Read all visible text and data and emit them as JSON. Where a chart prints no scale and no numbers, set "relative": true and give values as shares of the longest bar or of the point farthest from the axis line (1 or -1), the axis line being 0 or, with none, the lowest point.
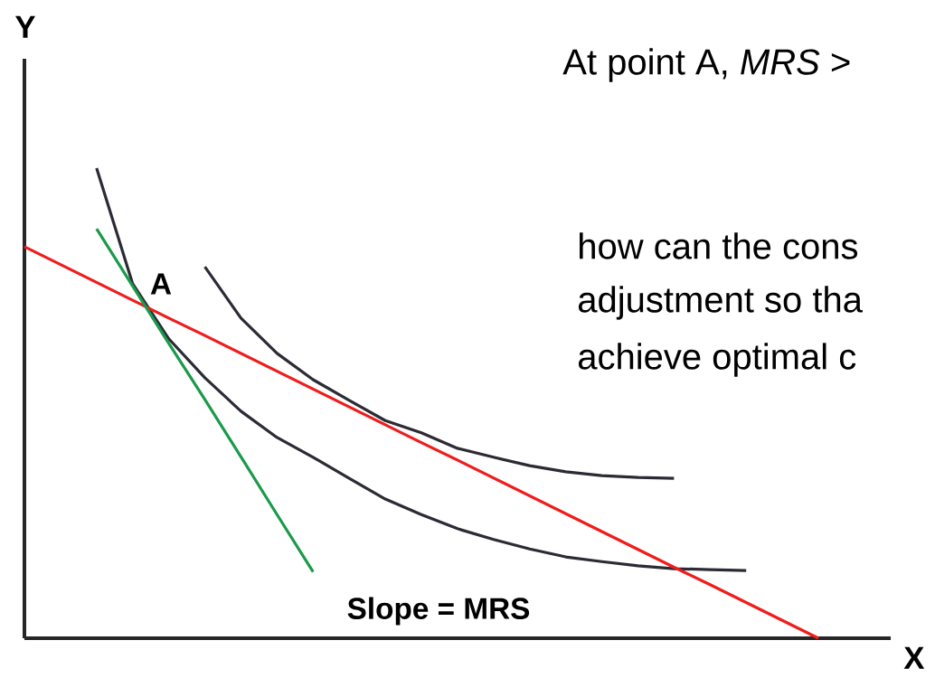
{
  "chart_data": {
    "type": "line",
    "relative": true,
    "xlabel": "X",
    "ylabel": "Y",
    "categories": [
      null,
      null,
      null,
      null,
      null,
      null,
      null,
      null,
      null,
      null,
      null,
      null,
      null,
      null,
      null,
      null,
      null,
      null,
      null,
      null,
      null,
      null,
      null
    ],
    "series": [
      {
        "color": "#2b2b35",
        "values": [
          null,
          null,
          1.0,
          0.754,
          0.637,
          0.554,
          0.483,
          0.427,
          0.385,
          0.34,
          0.296,
          0.263,
          0.233,
          0.21,
          0.19,
          0.173,
          0.163,
          0.154,
          0.148,
          0.146,
          0.144,
          null,
          null
        ]
      },
      {
        "color": "#2b2b35",
        "values": [
          null,
          null,
          null,
          null,
          null,
          0.79,
          0.681,
          0.606,
          0.55,
          0.506,
          0.463,
          0.437,
          0.404,
          0.385,
          0.367,
          0.354,
          0.346,
          0.342,
          0.34,
          null,
          null,
          null,
          null
        ]
      },
      {
        "color": "#f01c1c",
        "values": [
          0.833,
          0.795,
          0.757,
          0.719,
          0.681,
          0.644,
          0.606,
          0.568,
          0.53,
          0.492,
          0.454,
          0.416,
          0.379,
          0.341,
          0.303,
          0.265,
          0.227,
          0.189,
          0.151,
          0.114,
          0.076,
          0.038,
          0
        ]
      },
      {
        "color": "#1a9a4a",
        "values": [
          null,
          null,
          0.871,
          0.749,
          0.627,
          0.508,
          0.386,
          0.263,
          0.141,
          null,
          null,
          null,
          null,
          null,
          null,
          null,
          null,
          null,
          null,
          null,
          null,
          null,
          null
        ]
      }
    ],
    "annotations": [
      "At point A, *MRS* >",
      "A",
      "Slope = MRS",
      "how can the cons",
      "adjustment so tha",
      "achieve optimal c"
    ]
  }
}
